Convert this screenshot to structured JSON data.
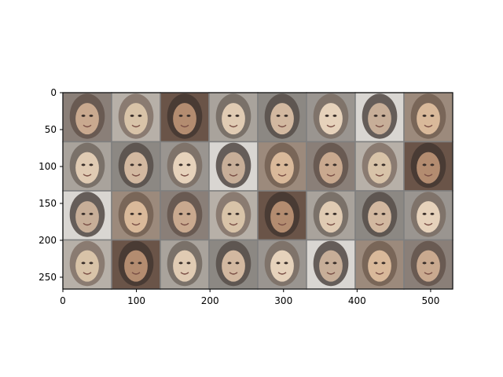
{
  "figure": {
    "image_grid": {
      "rows": 4,
      "cols": 8,
      "description_tags": [
        "generated-face-samples"
      ]
    },
    "axes": {
      "x_ticks": [
        "0",
        "100",
        "200",
        "300",
        "400",
        "500"
      ],
      "y_ticks": [
        "0",
        "50",
        "100",
        "150",
        "200",
        "250"
      ],
      "x_tick_values": [
        0,
        100,
        200,
        300,
        400,
        500
      ],
      "y_tick_values": [
        0,
        50,
        100,
        150,
        200,
        250
      ],
      "x_range": [
        0,
        530
      ],
      "y_range": [
        0,
        266
      ]
    },
    "colors": {
      "background": "#ffffff",
      "axis": "#000000",
      "tile_border": "#7f7f7f"
    }
  }
}
